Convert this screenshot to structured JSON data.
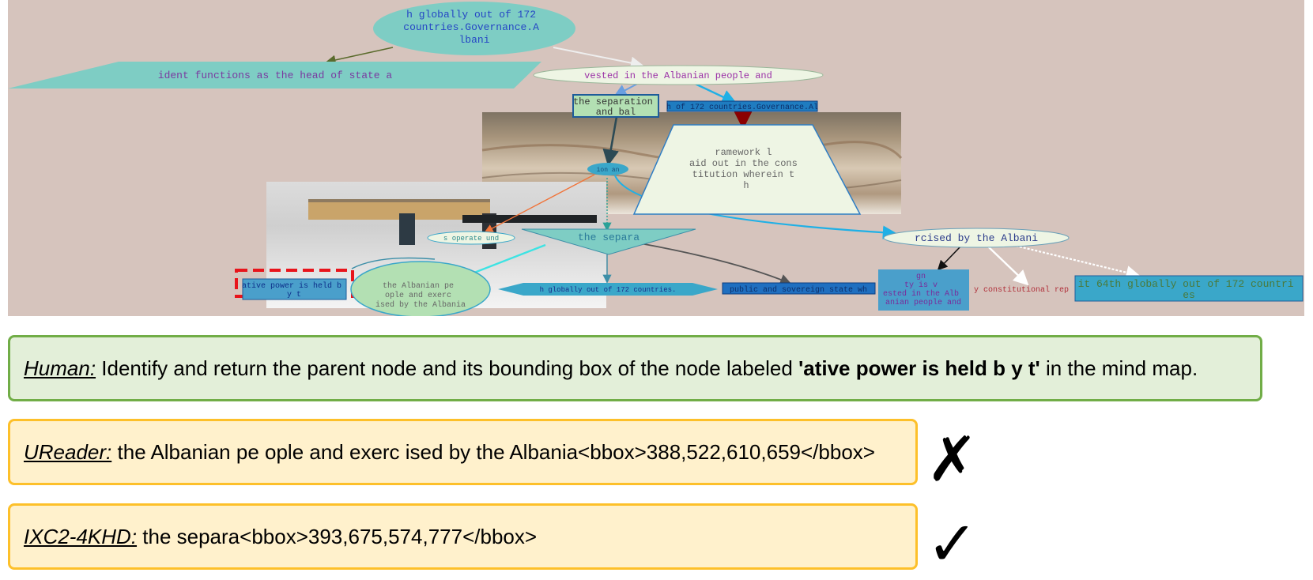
{
  "mindmap": {
    "nodes": {
      "n_top": "h globally out of 172\ncountries.Governance.A\nlbani",
      "n_head": "ident functions as the head of state a",
      "n_vested": "vested in the Albanian people and",
      "n_sep_bal": "the separation\nand bal",
      "n_dark1": "h of 172 countries.Governance.Al",
      "n_framework": "ramework l\naid out in the cons\ntitution wherein t\nh",
      "n_small": "ion an",
      "n_operate": "s operate und",
      "n_separa": "the separa",
      "n_rcised": "rcised by the Albani",
      "n_ative": "ative power is held b\ny t",
      "n_albanian": "the Albanian pe\nople and exerc\nised by the Albania",
      "n_globally": "h globally out of 172 countries.",
      "n_public": "public and sovereign state wh",
      "n_gn": "gn\nty is v\nested in the Alb\nanian people and",
      "n_constit": "y constitutional rep",
      "n_64th": "it 64th globally out of 172 countri\nes"
    }
  },
  "qa": {
    "human": {
      "speaker": "Human:",
      "text_before": " Identify and return the parent node and its bounding box of the node labeled ",
      "query": "'ative power is held b y t'",
      "text_after": " in the mind map."
    },
    "ureader": {
      "speaker": "UReader:",
      "answer": " the Albanian pe ople and exerc ised by the Albania<bbox>388,522,610,659</bbox>",
      "verdict": "✗"
    },
    "ixc2": {
      "speaker": "IXC2-4KHD:",
      "answer": " the separa<bbox>393,675,574,777</bbox>",
      "verdict": "✓"
    }
  },
  "colors": {
    "background": "#d6c4bd",
    "teal": "#7ecdc4",
    "pale": "#eef5e4",
    "blue": "#4a9fcb",
    "green": "#b3e0b3",
    "highlight": "#e8141b",
    "human_bg": "#e3efd9",
    "human_border": "#71ad47",
    "answer_bg": "#fff1cc",
    "answer_border": "#fdc02a"
  }
}
